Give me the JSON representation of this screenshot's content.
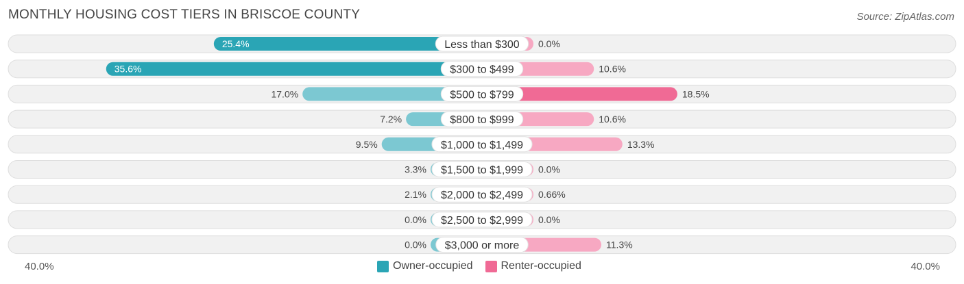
{
  "title": "MONTHLY HOUSING COST TIERS IN BRISCOE COUNTY",
  "source": "Source: ZipAtlas.com",
  "colors": {
    "owner_strong": "#2aa5b5",
    "owner_light": "#7cc8d2",
    "renter_strong": "#f06a95",
    "renter_light": "#f7a8c2"
  },
  "chart_data": {
    "type": "bar",
    "orientation": "horizontal-diverging",
    "categories": [
      "Less than $300",
      "$300 to $499",
      "$500 to $799",
      "$800 to $999",
      "$1,000 to $1,499",
      "$1,500 to $1,999",
      "$2,000 to $2,499",
      "$2,500 to $2,999",
      "$3,000 or more"
    ],
    "series": [
      {
        "name": "Owner-occupied",
        "values": [
          25.4,
          35.6,
          17.0,
          7.2,
          9.5,
          3.3,
          2.1,
          0.0,
          0.0
        ],
        "labels": [
          "25.4%",
          "35.6%",
          "17.0%",
          "7.2%",
          "9.5%",
          "3.3%",
          "2.1%",
          "0.0%",
          "0.0%"
        ]
      },
      {
        "name": "Renter-occupied",
        "values": [
          0.0,
          10.6,
          18.5,
          10.6,
          13.3,
          0.0,
          0.66,
          0.0,
          11.3
        ],
        "labels": [
          "0.0%",
          "10.6%",
          "18.5%",
          "10.6%",
          "13.3%",
          "0.0%",
          "0.66%",
          "0.0%",
          "11.3%"
        ]
      }
    ],
    "xlim": [
      -40,
      40
    ],
    "axis_left_label": "40.0%",
    "axis_right_label": "40.0%",
    "legend_position": "bottom-center"
  }
}
